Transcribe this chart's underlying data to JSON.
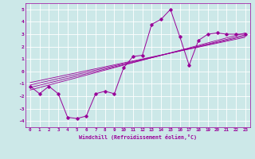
{
  "xlabel": "Windchill (Refroidissement éolien,°C)",
  "bg_color": "#cce8e8",
  "grid_color": "#ffffff",
  "line_color": "#990099",
  "xlim": [
    -0.5,
    23.5
  ],
  "ylim": [
    -4.5,
    5.5
  ],
  "yticks": [
    -4,
    -3,
    -2,
    -1,
    0,
    1,
    2,
    3,
    4,
    5
  ],
  "xticks": [
    0,
    1,
    2,
    3,
    4,
    5,
    6,
    7,
    8,
    9,
    10,
    11,
    12,
    13,
    14,
    15,
    16,
    17,
    18,
    19,
    20,
    21,
    22,
    23
  ],
  "main_series_x": [
    0,
    1,
    2,
    3,
    4,
    5,
    6,
    7,
    8,
    9,
    10,
    11,
    12,
    13,
    14,
    15,
    16,
    17,
    18,
    19,
    20,
    21,
    22,
    23
  ],
  "main_series_y": [
    -1.2,
    -1.8,
    -1.2,
    -1.8,
    -3.7,
    -3.8,
    -3.6,
    -1.8,
    -1.6,
    -1.8,
    0.3,
    1.2,
    1.3,
    3.8,
    4.2,
    5.0,
    2.8,
    0.5,
    2.5,
    3.0,
    3.1,
    3.0,
    3.0,
    3.0
  ],
  "lines": [
    {
      "x": [
        0,
        23
      ],
      "y": [
        -1.5,
        3.1
      ]
    },
    {
      "x": [
        0,
        23
      ],
      "y": [
        -1.3,
        2.95
      ]
    },
    {
      "x": [
        0,
        23
      ],
      "y": [
        -1.1,
        2.85
      ]
    },
    {
      "x": [
        0,
        23
      ],
      "y": [
        -0.9,
        2.75
      ]
    }
  ]
}
